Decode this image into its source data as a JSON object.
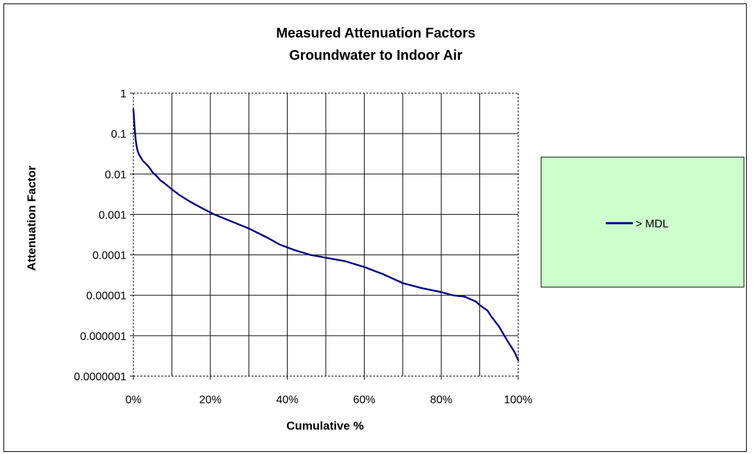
{
  "chart_data": {
    "type": "line",
    "title": "Measured Attenuation Factors",
    "subtitle": "Groundwater to Indoor Air",
    "xlabel": "Cumulative %",
    "ylabel": "Attenuation Factor",
    "x_scale": "linear",
    "y_scale": "log",
    "xlim": [
      0,
      100
    ],
    "ylim": [
      1e-07,
      1
    ],
    "x_ticks": [
      "0%",
      "20%",
      "40%",
      "60%",
      "80%",
      "100%"
    ],
    "y_ticks": [
      "1",
      "0.1",
      "0.01",
      "0.001",
      "0.0001",
      "0.00001",
      "0.000001",
      "0.0000001"
    ],
    "grid": true,
    "legend_position": "right",
    "series": [
      {
        "name": "> MDL",
        "color": "#000080",
        "x": [
          0,
          0.3,
          0.6,
          0.9,
          1.2,
          1.5,
          2,
          2.5,
          3,
          3.5,
          4,
          4.5,
          5,
          6,
          7,
          8,
          10,
          12,
          15,
          18,
          21,
          25,
          30,
          35,
          38,
          42,
          46,
          50,
          55,
          60,
          65,
          70,
          75,
          80,
          83,
          86,
          89,
          90,
          92,
          93,
          95,
          97,
          99,
          100
        ],
        "y": [
          0.4,
          0.15,
          0.07,
          0.045,
          0.035,
          0.03,
          0.025,
          0.021,
          0.019,
          0.017,
          0.015,
          0.013,
          0.011,
          0.009,
          0.007,
          0.006,
          0.0042,
          0.003,
          0.002,
          0.0014,
          0.001,
          0.0007,
          0.00045,
          0.00026,
          0.00018,
          0.00013,
          0.0001,
          8.5e-05,
          7e-05,
          5e-05,
          3.3e-05,
          2e-05,
          1.5e-05,
          1.2e-05,
          1e-05,
          9.3e-06,
          7e-06,
          5.7e-06,
          4.2e-06,
          3e-06,
          1.7e-06,
          8e-07,
          4e-07,
          2.5e-07
        ]
      }
    ]
  },
  "colors": {
    "line": "#000080",
    "legend_bg": "#ccffcc",
    "grid": "#000000"
  }
}
